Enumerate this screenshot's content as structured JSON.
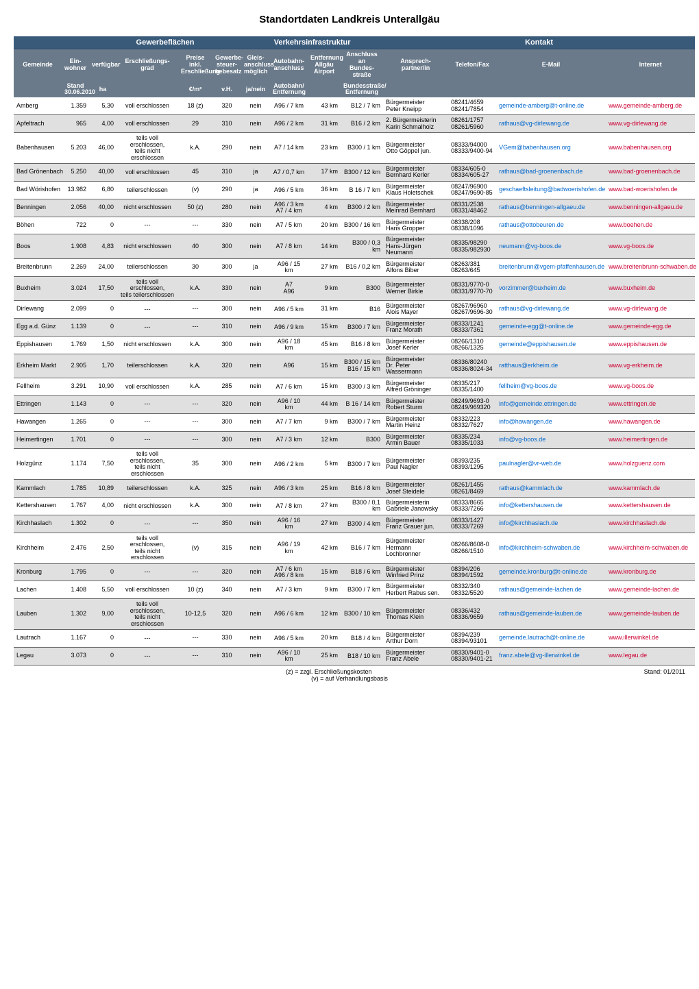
{
  "title": "Standortdaten Landkreis Unterallgäu",
  "group_headers": {
    "gewerbe": "Gewerbeflächen",
    "verkehr": "Verkehrsinfrastruktur",
    "kontakt": "Kontakt"
  },
  "columns": {
    "gemeinde": "Gemeinde",
    "einwohner": "Ein-\nwohner",
    "verfugbar": "verfügbar",
    "erschliessung": "Erschließungs-\ngrad",
    "preise": "Preise inkl.\nErschließung",
    "gewerbesteuer": "Gewerbe-\nsteuer-\nhebesatz",
    "gleis": "Gleis-\nanschluss\nmöglich",
    "autobahn": "Autobahn-\nanschluss",
    "entfernung": "Entfernung\nAllgäu\nAirport",
    "anschluss": "Anschluss an\nBundes- straße",
    "ansprech": "Ansprech-\npartner/in",
    "telefon": "Telefon/Fax",
    "email": "E-Mail",
    "internet": "Internet"
  },
  "sub_headers": {
    "stand": "Stand\n30.06.2010",
    "ha": "ha",
    "eurm2": "€/m²",
    "vh": "v.H.",
    "janein": "ja/nein",
    "autobahn_ent": "Autobahn/\nEntfernung",
    "bundes_ent": "Bundesstraße/\nEntfernung"
  },
  "footnotes": {
    "z": "(z) = zzgl. Erschließungskosten",
    "v": "(v) = auf Verhandlungsbasis",
    "stand": "Stand: 01/2011"
  },
  "rows": [
    {
      "gemeinde": "Amberg",
      "einw": "1.359",
      "verf": "5,30",
      "ersch": "voll erschlossen",
      "preis": "18 (z)",
      "steuer": "320",
      "gleis": "nein",
      "auto": "A96 / 7 km",
      "ent": "43 km",
      "ans": "B12 / 7 km",
      "part": "Bürgermeister\nPeter Kneipp",
      "tel": "08241/4659\n08241/7854",
      "email": "gemeinde-amberg@t-online.de",
      "net": "www.gemeinde-amberg.de"
    },
    {
      "gemeinde": "Apfeltrach",
      "einw": "965",
      "verf": "4,00",
      "ersch": "voll erschlossen",
      "preis": "29",
      "steuer": "310",
      "gleis": "nein",
      "auto": "A96 / 2 km",
      "ent": "31 km",
      "ans": "B16 / 2 km",
      "part": "2. Bürgermeisterin\nKarin Schmalholz",
      "tel": "08261/1757\n08261/5960",
      "email": "rathaus@vg-dirlewang.de",
      "net": "www.vg-dirlewang.de"
    },
    {
      "gemeinde": "Babenhausen",
      "einw": "5.203",
      "verf": "46,00",
      "ersch": "teils voll erschlossen,\nteils nicht erschlossen",
      "preis": "k.A.",
      "steuer": "290",
      "gleis": "nein",
      "auto": "A7 / 14 km",
      "ent": "23 km",
      "ans": "B300 / 1 km",
      "part": "Bürgermeister\nOtto Göppel jun.",
      "tel": "08333/94000\n08333/9400-94",
      "email": "VGem@babenhausen.org",
      "net": "www.babenhausen.org"
    },
    {
      "gemeinde": "Bad Grönenbach",
      "einw": "5.250",
      "verf": "40,00",
      "ersch": "voll erschlossen",
      "preis": "45",
      "steuer": "310",
      "gleis": "ja",
      "auto": "A7 / 0,7 km",
      "ent": "17 km",
      "ans": "B300 / 12 km",
      "part": "Bürgermeister\nBernhard Kerler",
      "tel": "08334/605-0\n08334/605-27",
      "email": "rathaus@bad-groenenbach.de",
      "net": "www.bad-groenenbach.de"
    },
    {
      "gemeinde": "Bad Wörishofen",
      "einw": "13.982",
      "verf": "6,80",
      "ersch": "teilerschlossen",
      "preis": "(v)",
      "steuer": "290",
      "gleis": "ja",
      "auto": "A96 / 5 km",
      "ent": "36 km",
      "ans": "B 16 / 7 km",
      "part": "Bürgermeister\nKlaus Holetschek",
      "tel": "08247/96900\n08247/9690-85",
      "email": "geschaeftsleitung@badwoerishofen.de",
      "net": "www.bad-woerishofen.de"
    },
    {
      "gemeinde": "Benningen",
      "einw": "2.056",
      "verf": "40,00",
      "ersch": "nicht erschlossen",
      "preis": "50 (z)",
      "steuer": "280",
      "gleis": "nein",
      "auto": "A96 / 3 km\nA7 / 4 km",
      "ent": "4 km",
      "ans": "B300 / 2 km",
      "part": "Bürgermeister\nMeinrad Bernhard",
      "tel": "08331/2538\n08331/48462",
      "email": "rathaus@benningen-allgaeu.de",
      "net": "www.benningen-allgaeu.de"
    },
    {
      "gemeinde": "Böhen",
      "einw": "722",
      "verf": "0",
      "ersch": "---",
      "preis": "---",
      "steuer": "330",
      "gleis": "nein",
      "auto": "A7 / 5 km",
      "ent": "20 km",
      "ans": "B300 / 16 km",
      "part": "Bürgermeister\nHans Gropper",
      "tel": "08338/208\n08338/1096",
      "email": "rathaus@ottobeuren.de",
      "net": "www.boehen.de"
    },
    {
      "gemeinde": "Boos",
      "einw": "1.908",
      "verf": "4,83",
      "ersch": "nicht erschlossen",
      "preis": "40",
      "steuer": "300",
      "gleis": "nein",
      "auto": "A7 / 8 km",
      "ent": "14 km",
      "ans": "B300 / 0,3 km",
      "part": "Bürgermeister\nHans-Jürgen Neumann",
      "tel": "08335/98290\n08335/982930",
      "email": "neumann@vg-boos.de",
      "net": "www.vg-boos.de"
    },
    {
      "gemeinde": "Breitenbrunn",
      "einw": "2.269",
      "verf": "24,00",
      "ersch": "teilerschlossen",
      "preis": "30",
      "steuer": "300",
      "gleis": "ja",
      "auto": "A96 / 15 km",
      "ent": "27 km",
      "ans": "B16 / 0,2 km",
      "part": "Bürgermeister\nAlfons Biber",
      "tel": "08263/381\n08263/645",
      "email": "breitenbrunn@vgem-pfaffenhausen.de",
      "net": "www.breitenbrunn-schwaben.de"
    },
    {
      "gemeinde": "Buxheim",
      "einw": "3.024",
      "verf": "17,50",
      "ersch": "teils voll erschlossen,\nteils teilerschlossen",
      "preis": "k.A.",
      "steuer": "330",
      "gleis": "nein",
      "auto": "A7\nA96",
      "ent": "9 km",
      "ans": "B300",
      "part": "Bürgermeister\nWerner Birkle",
      "tel": "08331/9770-0\n08331/9770-70",
      "email": "vorzimmer@buxheim.de",
      "net": "www.buxheim.de"
    },
    {
      "gemeinde": "Dirlewang",
      "einw": "2.099",
      "verf": "0",
      "ersch": "---",
      "preis": "---",
      "steuer": "300",
      "gleis": "nein",
      "auto": "A96 / 5 km",
      "ent": "31 km",
      "ans": "B16",
      "part": "Bürgermeister\nAlois Mayer",
      "tel": "08267/96960\n08267/9696-30",
      "email": "rathaus@vg-dirlewang.de",
      "net": "www.vg-dirlewang.de"
    },
    {
      "gemeinde": "Egg a.d. Günz",
      "einw": "1.139",
      "verf": "0",
      "ersch": "---",
      "preis": "---",
      "steuer": "310",
      "gleis": "nein",
      "auto": "A96 / 9 km",
      "ent": "15 km",
      "ans": "B300 / 7 km",
      "part": "Bürgermeister\nFranz Morath",
      "tel": "08333/1241\n08333/7361",
      "email": "gemeinde-egg@t-online.de",
      "net": "www.gemeinde-egg.de"
    },
    {
      "gemeinde": "Eppishausen",
      "einw": "1.769",
      "verf": "1,50",
      "ersch": "nicht erschlossen",
      "preis": "k.A.",
      "steuer": "300",
      "gleis": "nein",
      "auto": "A96 / 18 km",
      "ent": "45 km",
      "ans": "B16 / 8 km",
      "part": "Bürgermeister\nJosef Kerler",
      "tel": "08266/1310\n08266/1325",
      "email": "gemeinde@eppishausen.de",
      "net": "www.eppishausen.de"
    },
    {
      "gemeinde": "Erkheim Markt",
      "einw": "2.905",
      "verf": "1,70",
      "ersch": "teilerschlossen",
      "preis": "k.A.",
      "steuer": "320",
      "gleis": "nein",
      "auto": "A96",
      "ent": "15 km",
      "ans": "B300 / 15 km\nB16 / 15 km",
      "part": "Bürgermeister\nDr. Peter Wassermann",
      "tel": "08336/80240\n08336/8024-34",
      "email": "ratthaus@erkheim.de",
      "net": "www.vg-erkheim.de"
    },
    {
      "gemeinde": "Fellheim",
      "einw": "3.291",
      "verf": "10,90",
      "ersch": "voll erschlossen",
      "preis": "k.A.",
      "steuer": "285",
      "gleis": "nein",
      "auto": "A7 / 6 km",
      "ent": "15 km",
      "ans": "B300 / 3 km",
      "part": "Bürgermeister\nAlfred Gröninger",
      "tel": "08335/217\n08335/1400",
      "email": "fellheim@vg-boos.de",
      "net": "www.vg-boos.de"
    },
    {
      "gemeinde": "Ettringen",
      "einw": "1.143",
      "verf": "0",
      "ersch": "---",
      "preis": "---",
      "steuer": "320",
      "gleis": "nein",
      "auto": "A96 / 10 km",
      "ent": "44 km",
      "ans": "B 16 / 14 km",
      "part": "Bürgermeister\nRobert Sturm",
      "tel": "08249/9693-0\n08249/969320",
      "email": "info@gemeinde.ettringen.de",
      "net": "www.ettringen.de"
    },
    {
      "gemeinde": "Hawangen",
      "einw": "1.265",
      "verf": "0",
      "ersch": "---",
      "preis": "---",
      "steuer": "300",
      "gleis": "nein",
      "auto": "A7 / 7 km",
      "ent": "9 km",
      "ans": "B300 / 7 km",
      "part": "Bürgermeister\nMartin Heinz",
      "tel": "08332/223\n08332/7627",
      "email": "info@hawangen.de",
      "net": "www.hawangen.de"
    },
    {
      "gemeinde": "Heimertingen",
      "einw": "1.701",
      "verf": "0",
      "ersch": "---",
      "preis": "---",
      "steuer": "300",
      "gleis": "nein",
      "auto": "A7 / 3 km",
      "ent": "12 km",
      "ans": "B300",
      "part": "Bürgermeister\nArmin Bauer",
      "tel": "08335/234\n08335/1033",
      "email": "info@vg-boos.de",
      "net": "www.heimertingen.de"
    },
    {
      "gemeinde": "Holzgünz",
      "einw": "1.174",
      "verf": "7,50",
      "ersch": "teils voll erschlossen,\nteils nicht erschlossen",
      "preis": "35",
      "steuer": "300",
      "gleis": "nein",
      "auto": "A96 / 2 km",
      "ent": "5 km",
      "ans": "B300 / 7 km",
      "part": "Bürgermeister\nPaul Nagler",
      "tel": "08393/235\n08393/1295",
      "email": "paulnagler@vr-web.de",
      "net": "www.holzguenz.com"
    },
    {
      "gemeinde": "Kammlach",
      "einw": "1.785",
      "verf": "10,89",
      "ersch": "teilerschlossen",
      "preis": "k.A.",
      "steuer": "325",
      "gleis": "nein",
      "auto": "A96 / 3 km",
      "ent": "25 km",
      "ans": "B16 / 8 km",
      "part": "Bürgermeister\nJosef Steidele",
      "tel": "08261/1455\n08261/8469",
      "email": "rathaus@kammlach.de",
      "net": "www.kammlach.de"
    },
    {
      "gemeinde": "Kettershausen",
      "einw": "1.767",
      "verf": "4,00",
      "ersch": "nicht erschlossen",
      "preis": "k.A.",
      "steuer": "300",
      "gleis": "nein",
      "auto": "A7 / 8 km",
      "ent": "27 km",
      "ans": "B300 / 0,1 km",
      "part": "Bürgermeisterin\nGabriele Janowsky",
      "tel": "08333/8665\n08333/7266",
      "email": "info@kettershausen.de",
      "net": "www.kettershausen.de"
    },
    {
      "gemeinde": "Kirchhaslach",
      "einw": "1.302",
      "verf": "0",
      "ersch": "---",
      "preis": "---",
      "steuer": "350",
      "gleis": "nein",
      "auto": "A96 / 16 km",
      "ent": "27 km",
      "ans": "B300 / 4 km",
      "part": "Bürgermeister\nFranz Grauer jun.",
      "tel": "08333/1427\n08333/7269",
      "email": "info@kirchhaslach.de",
      "net": "www.kirchhaslach.de"
    },
    {
      "gemeinde": "Kirchheim",
      "einw": "2.476",
      "verf": "2,50",
      "ersch": "teils voll erschlossen,\nteils nicht erschlossen",
      "preis": "(v)",
      "steuer": "315",
      "gleis": "nein",
      "auto": "A96 / 19 km",
      "ent": "42 km",
      "ans": "B16 / 7 km",
      "part": "Bürgermeister\nHermann Lochbronner",
      "tel": "08266/8608-0\n08266/1510",
      "email": "info@kirchheim-schwaben.de",
      "net": "www.kirchheim-schwaben.de"
    },
    {
      "gemeinde": "Kronburg",
      "einw": "1.795",
      "verf": "0",
      "ersch": "---",
      "preis": "---",
      "steuer": "320",
      "gleis": "nein",
      "auto": "A7 / 6 km\nA96 / 8 km",
      "ent": "15 km",
      "ans": "B18 / 6 km",
      "part": "Bürgermeister\nWinfried Prinz",
      "tel": "08394/206\n08394/1592",
      "email": "gemeinde.kronburg@t-online.de",
      "net": "www.kronburg.de"
    },
    {
      "gemeinde": "Lachen",
      "einw": "1.408",
      "verf": "5,50",
      "ersch": "voll erschlossen",
      "preis": "10 (z)",
      "steuer": "340",
      "gleis": "nein",
      "auto": "A7 / 3 km",
      "ent": "9 km",
      "ans": "B300 / 7 km",
      "part": "Bürgermeister\nHerbert Rabus sen.",
      "tel": "08332/340\n08332/5520",
      "email": "rathaus@gemeinde-lachen.de",
      "net": "www.gemeinde-lachen.de"
    },
    {
      "gemeinde": "Lauben",
      "einw": "1.302",
      "verf": "9,00",
      "ersch": "teils voll erschlossen,\nteils nicht erschlossen",
      "preis": "10-12,5",
      "steuer": "320",
      "gleis": "nein",
      "auto": "A96 / 6 km",
      "ent": "12 km",
      "ans": "B300 / 10 km",
      "part": "Bürgermeister\nThomas Klein",
      "tel": "08336/432\n08336/9659",
      "email": "rathaus@gemeinde-lauben.de",
      "net": "www.gemeinde-lauben.de"
    },
    {
      "gemeinde": "Lautrach",
      "einw": "1.167",
      "verf": "0",
      "ersch": "---",
      "preis": "---",
      "steuer": "330",
      "gleis": "nein",
      "auto": "A96 / 5 km",
      "ent": "20 km",
      "ans": "B18 / 4 km",
      "part": "Bürgermeister\nArthur Dorn",
      "tel": "08394/239\n08394/93101",
      "email": "gemeinde.lautrach@t-online.de",
      "net": "www.illerwinkel.de"
    },
    {
      "gemeinde": "Legau",
      "einw": "3.073",
      "verf": "0",
      "ersch": "---",
      "preis": "---",
      "steuer": "310",
      "gleis": "nein",
      "auto": "A96 / 10 km",
      "ent": "25 km",
      "ans": "B18 / 10 km",
      "part": "Bürgermeister\nFranz Abele",
      "tel": "08330/9401-0\n08330/9401-21",
      "email": "franz.abele@vg-illerwinkel.de",
      "net": "www.legau.de"
    }
  ]
}
